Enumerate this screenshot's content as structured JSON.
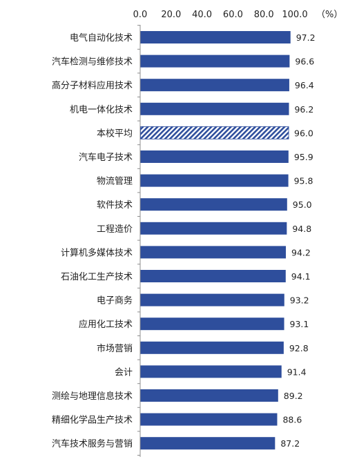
{
  "chart_data": {
    "type": "bar",
    "orientation": "horizontal",
    "unit_label": "（%）",
    "xlim": [
      0,
      100
    ],
    "ticks": [
      "0.0",
      "20.0",
      "40.0",
      "60.0",
      "80.0",
      "100.0"
    ],
    "tick_values": [
      0,
      20,
      40,
      60,
      80,
      100
    ],
    "grid": false,
    "bar_color": "#2E4E9C",
    "hatched_category": "本校平均",
    "categories": [
      "电气自动化技术",
      "汽车检测与维修技术",
      "高分子材料应用技术",
      "机电一体化技术",
      "本校平均",
      "汽车电子技术",
      "物流管理",
      "软件技术",
      "工程造价",
      "计算机多媒体技术",
      "石油化工生产技术",
      "电子商务",
      "应用化工技术",
      "市场营销",
      "会计",
      "测绘与地理信息技术",
      "精细化学品生产技术",
      "汽车技术服务与营销"
    ],
    "values": [
      97.2,
      96.6,
      96.4,
      96.2,
      96.0,
      95.9,
      95.8,
      95.0,
      94.8,
      94.2,
      94.1,
      93.2,
      93.1,
      92.8,
      91.4,
      89.2,
      88.6,
      87.2
    ],
    "value_labels": [
      "97.2",
      "96.6",
      "96.4",
      "96.2",
      "96.0",
      "95.9",
      "95.8",
      "95.0",
      "94.8",
      "94.2",
      "94.1",
      "93.2",
      "93.1",
      "92.8",
      "91.4",
      "89.2",
      "88.6",
      "87.2"
    ]
  }
}
